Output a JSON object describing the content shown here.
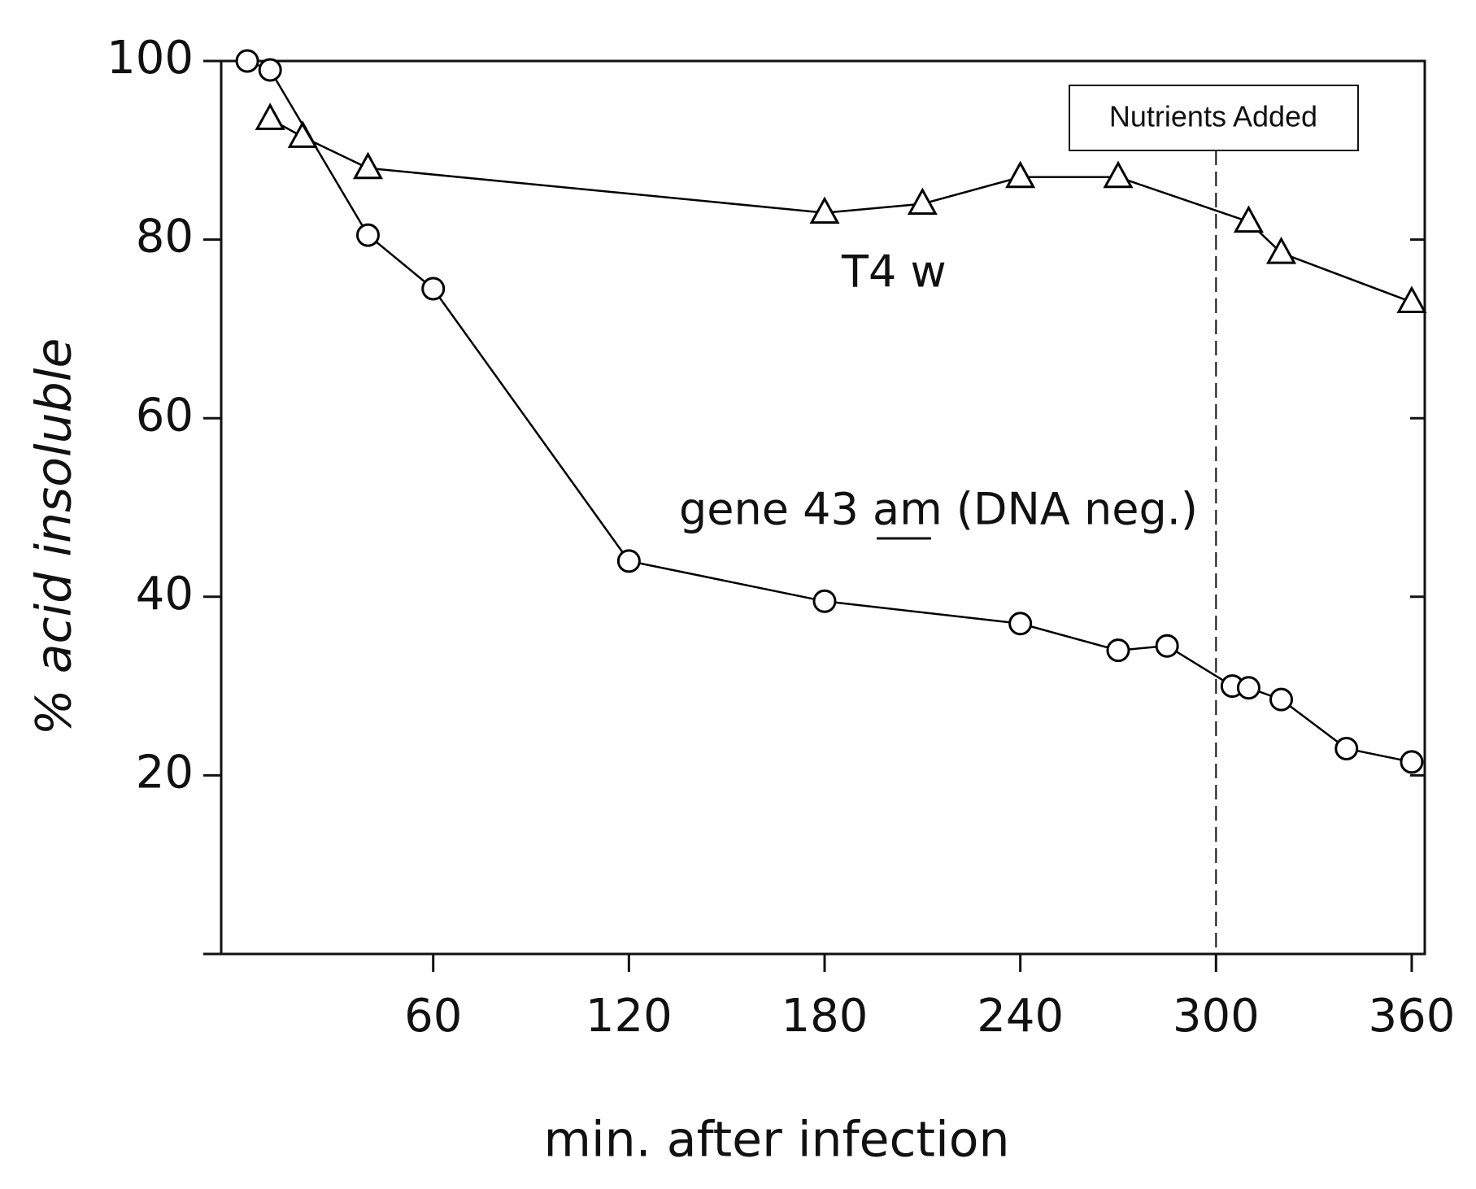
{
  "chart_data": {
    "type": "line",
    "x_label": "min. after infection",
    "y_label": "% acid insoluble",
    "xlim": [
      -5,
      364
    ],
    "ylim": [
      0,
      100
    ],
    "xticks": [
      60,
      120,
      180,
      240,
      300,
      360
    ],
    "yticks": [
      20,
      40,
      60,
      80,
      100
    ],
    "series": [
      {
        "name": "T4 w",
        "marker": "triangle",
        "color": "#000000",
        "x": [
          10,
          20,
          40,
          180,
          210,
          240,
          270,
          310,
          320,
          360
        ],
        "values": [
          93.5,
          91.5,
          88,
          83,
          84,
          87,
          87,
          82,
          78.5,
          73
        ]
      },
      {
        "name": "gene 43 am (DNA neg.)",
        "marker": "circle",
        "color": "#000000",
        "x": [
          3,
          10,
          40,
          60,
          120,
          180,
          240,
          270,
          285,
          305,
          310,
          320,
          340,
          360
        ],
        "values": [
          100,
          99,
          80.5,
          74.5,
          44,
          39.5,
          37,
          34,
          34.5,
          30,
          29.8,
          28.5,
          23,
          21.5
        ]
      }
    ],
    "annotation": {
      "text": "Nutrients Added",
      "x": 300
    }
  }
}
